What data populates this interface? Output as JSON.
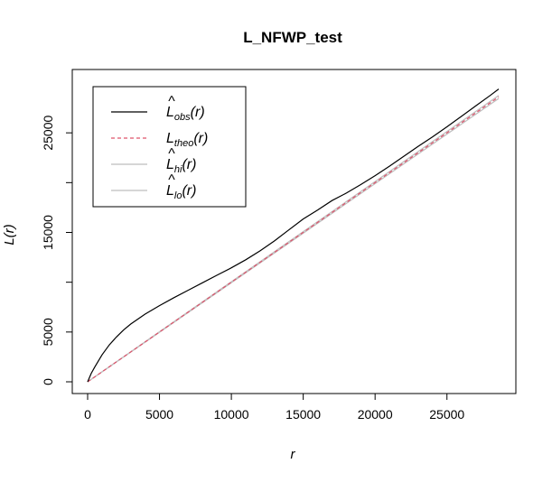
{
  "chart_data": {
    "type": "line",
    "title": "L_NFWP_test",
    "xlabel": "r",
    "ylabel": "L(r)",
    "xlim": [
      0,
      28600
    ],
    "ylim": [
      0,
      30000
    ],
    "x_ticks": [
      "0",
      "5000",
      "10000",
      "15000",
      "20000",
      "25000"
    ],
    "y_ticks": [
      "0",
      "5000",
      "15000",
      "25000"
    ],
    "grid": false,
    "legend": {
      "placement": "top-left",
      "entries": [
        {
          "main": "L",
          "hat": true,
          "sub": "obs",
          "arg": "(r)",
          "color": "#000000",
          "dash": "solid"
        },
        {
          "main": "L",
          "hat": false,
          "sub": "theo",
          "arg": "(r)",
          "color": "#DF536B",
          "dash": "dashed"
        },
        {
          "main": "L",
          "hat": true,
          "sub": "hi",
          "arg": "(r)",
          "color": "#BEBEBE",
          "dash": "solid"
        },
        {
          "main": "L",
          "hat": true,
          "sub": "lo",
          "arg": "(r)",
          "color": "#BEBEBE",
          "dash": "solid"
        }
      ]
    },
    "series": [
      {
        "key": "obs",
        "color": "#000000",
        "x": [
          0,
          250,
          500,
          1000,
          1500,
          2000,
          2500,
          3000,
          4000,
          5000,
          6000,
          7000,
          8000,
          9000,
          10000,
          11000,
          12000,
          13000,
          14000,
          15000,
          16000,
          17000,
          18000,
          19000,
          20000,
          21000,
          22000,
          23000,
          24000,
          25000,
          26000,
          27000,
          28000,
          28600
        ],
        "y": [
          0,
          850,
          1500,
          2700,
          3700,
          4500,
          5200,
          5800,
          6800,
          7650,
          8450,
          9200,
          9950,
          10700,
          11450,
          12250,
          13150,
          14150,
          15250,
          16350,
          17250,
          18200,
          18950,
          19800,
          20700,
          21650,
          22650,
          23650,
          24600,
          25600,
          26650,
          27700,
          28750,
          29400
        ]
      },
      {
        "key": "theo",
        "color": "#DF536B",
        "dash": "dashed",
        "x": [
          0,
          28600
        ],
        "y": [
          0,
          28600
        ]
      },
      {
        "key": "hi",
        "color": "#BEBEBE",
        "x": [
          0,
          28600
        ],
        "y": [
          0,
          28750
        ]
      },
      {
        "key": "lo",
        "color": "#BEBEBE",
        "x": [
          0,
          28600
        ],
        "y": [
          0,
          28450
        ]
      }
    ]
  }
}
